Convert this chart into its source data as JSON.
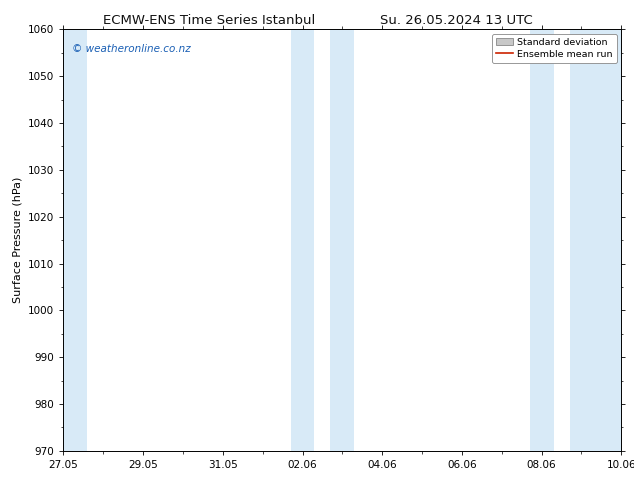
{
  "title_left": "ECMW-ENS Time Series Istanbul",
  "title_right": "Su. 26.05.2024 13 UTC",
  "ylabel": "Surface Pressure (hPa)",
  "ylim": [
    970,
    1060
  ],
  "yticks": [
    970,
    980,
    990,
    1000,
    1010,
    1020,
    1030,
    1040,
    1050,
    1060
  ],
  "xlim": [
    0,
    14
  ],
  "xtick_positions": [
    0,
    2,
    4,
    6,
    8,
    10,
    12,
    14
  ],
  "xtick_labels": [
    "27.05",
    "29.05",
    "31.05",
    "02.06",
    "04.06",
    "06.06",
    "08.06",
    "10.06"
  ],
  "bg_color": "#ffffff",
  "plot_bg_color": "#ffffff",
  "shaded_bands": [
    {
      "start": 0.0,
      "end": 0.6,
      "color": "#d8eaf7"
    },
    {
      "start": 5.7,
      "end": 6.3,
      "color": "#d8eaf7"
    },
    {
      "start": 6.7,
      "end": 7.3,
      "color": "#d8eaf7"
    },
    {
      "start": 11.7,
      "end": 12.3,
      "color": "#d8eaf7"
    },
    {
      "start": 12.7,
      "end": 14.0,
      "color": "#d8eaf7"
    }
  ],
  "watermark_text": "© weatheronline.co.nz",
  "watermark_color": "#1a5fb4",
  "legend_std_color": "#c8c8c8",
  "legend_mean_color": "#cc2200",
  "title_fontsize": 9.5,
  "axis_label_fontsize": 8,
  "tick_fontsize": 7.5,
  "watermark_fontsize": 7.5
}
